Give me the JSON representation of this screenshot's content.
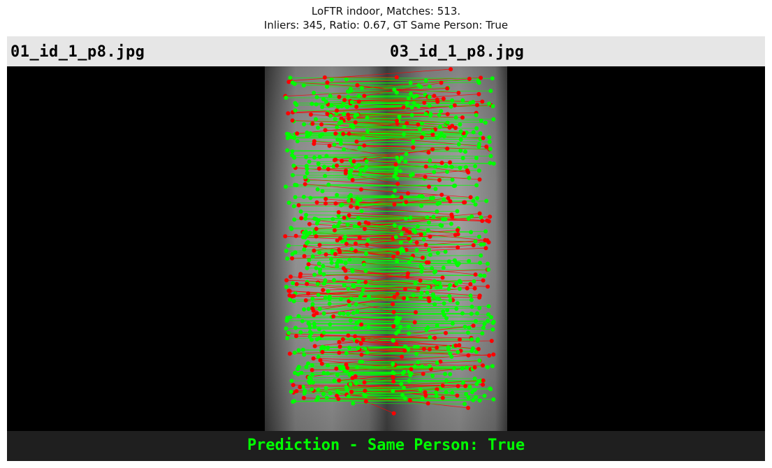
{
  "figure": {
    "title_line1": "LoFTR indoor, Matches: 513.",
    "title_line2": "Inliers: 345, Ratio: 0.67, GT Same Person: True"
  },
  "header": {
    "left_filename": "01_id_1_p8.jpg",
    "right_filename": "03_id_1_p8.jpg",
    "background": "#e6e6e6"
  },
  "footer": {
    "prediction_text": "Prediction - Same Person: True",
    "text_color": "#00ff00",
    "background": "#1f1f1f"
  },
  "matches": {
    "total": 513,
    "inliers": 345,
    "ratio": 0.67,
    "inlier_color": "#00ff00",
    "outlier_color": "#ff0000"
  }
}
